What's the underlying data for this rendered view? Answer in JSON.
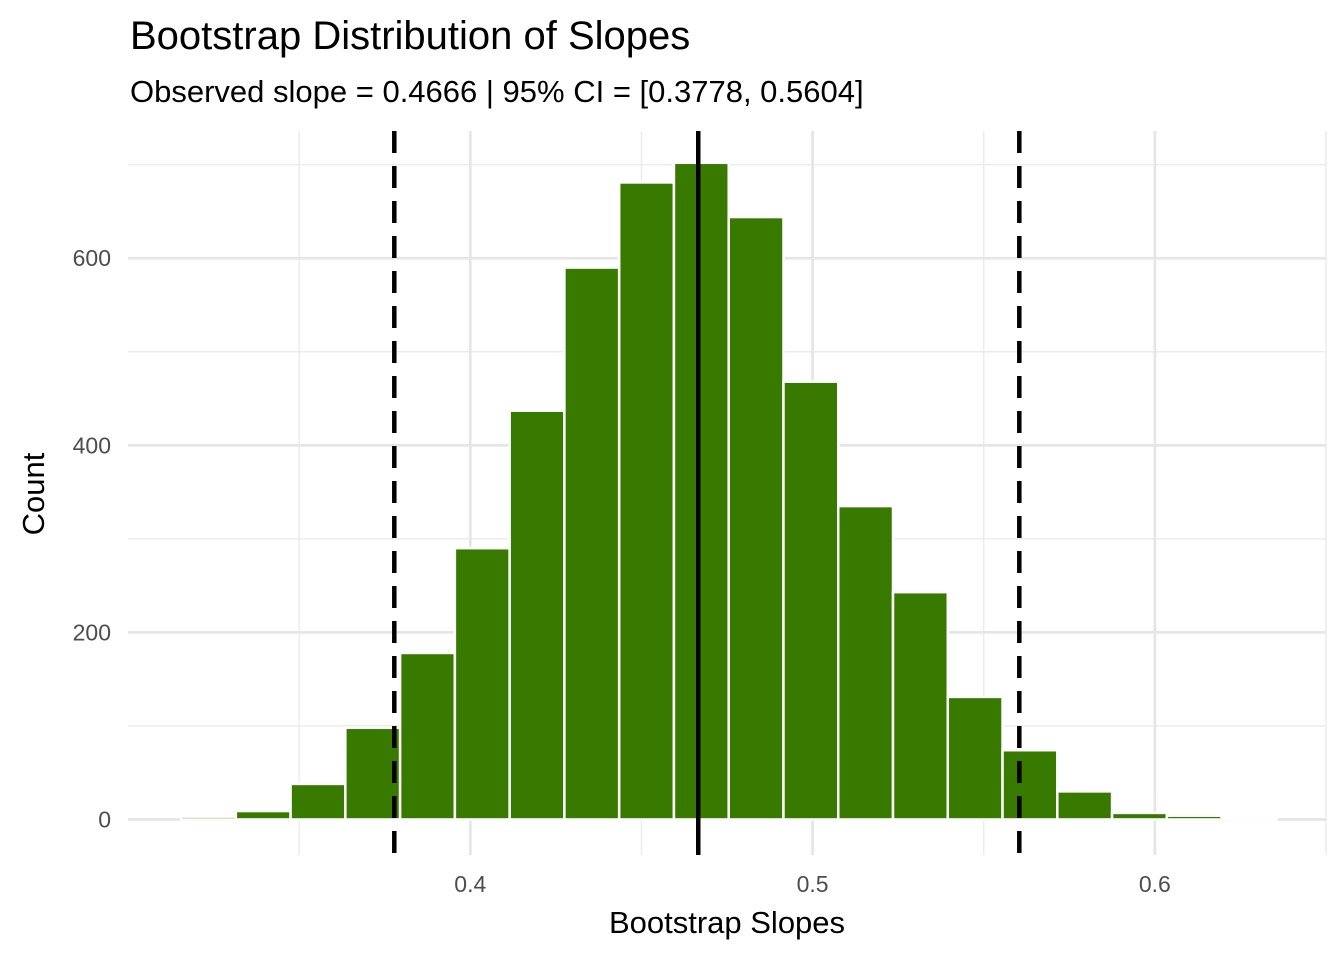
{
  "chart_data": {
    "type": "bar",
    "title": "Bootstrap Distribution of Slopes",
    "subtitle": "Observed slope = 0.4666 | 95% CI = [0.3778, 0.5604]",
    "xlabel": "Bootstrap Slopes",
    "ylabel": "Count",
    "bin_width": 0.016,
    "bins": [
      {
        "start": 0.3155,
        "end": 0.3315,
        "count": 3
      },
      {
        "start": 0.3315,
        "end": 0.3475,
        "count": 9
      },
      {
        "start": 0.3475,
        "end": 0.3635,
        "count": 38
      },
      {
        "start": 0.3635,
        "end": 0.3795,
        "count": 98
      },
      {
        "start": 0.3795,
        "end": 0.3955,
        "count": 178
      },
      {
        "start": 0.3955,
        "end": 0.4115,
        "count": 290
      },
      {
        "start": 0.4115,
        "end": 0.4275,
        "count": 437
      },
      {
        "start": 0.4275,
        "end": 0.4435,
        "count": 590
      },
      {
        "start": 0.4435,
        "end": 0.4595,
        "count": 681
      },
      {
        "start": 0.4595,
        "end": 0.4755,
        "count": 702
      },
      {
        "start": 0.4755,
        "end": 0.4915,
        "count": 644
      },
      {
        "start": 0.4915,
        "end": 0.5075,
        "count": 468
      },
      {
        "start": 0.5075,
        "end": 0.5235,
        "count": 335
      },
      {
        "start": 0.5235,
        "end": 0.5395,
        "count": 243
      },
      {
        "start": 0.5395,
        "end": 0.5555,
        "count": 131
      },
      {
        "start": 0.5555,
        "end": 0.5715,
        "count": 74
      },
      {
        "start": 0.5715,
        "end": 0.5875,
        "count": 30
      },
      {
        "start": 0.5875,
        "end": 0.6035,
        "count": 7
      },
      {
        "start": 0.6035,
        "end": 0.6195,
        "count": 4
      },
      {
        "start": 0.6195,
        "end": 0.6355,
        "count": 1
      }
    ],
    "bar_color": "#387A00",
    "bar_outline_color": "#ffffff",
    "observed_slope": 0.4666,
    "ci_lower": 0.3778,
    "ci_upper": 0.5604,
    "reference_lines": [
      {
        "value": 0.4666,
        "style": "solid"
      },
      {
        "value": 0.3778,
        "style": "dashed"
      },
      {
        "value": 0.5604,
        "style": "dashed"
      }
    ],
    "xlim": [
      0.3,
      0.65
    ],
    "ylim": [
      -38,
      736
    ],
    "x_ticks": [
      0.4,
      0.5,
      0.6
    ],
    "x_tick_labels": [
      "0.4",
      "0.5",
      "0.6"
    ],
    "x_minor_ticks": [
      0.35,
      0.45,
      0.55,
      0.65
    ],
    "y_ticks": [
      0,
      200,
      400,
      600
    ],
    "y_tick_labels": [
      "0",
      "200",
      "400",
      "600"
    ],
    "y_minor_ticks": [
      100,
      300,
      500,
      700
    ],
    "grid": true,
    "legend": "none"
  }
}
